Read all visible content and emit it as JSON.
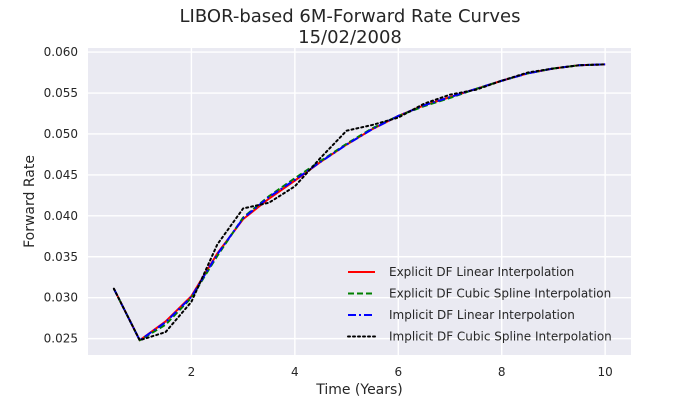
{
  "chart_data": {
    "type": "line",
    "title": "LIBOR-based 6M-Forward Rate Curves",
    "subtitle": "15/02/2008",
    "xlabel": "Time (Years)",
    "ylabel": "Forward Rate",
    "xlim": [
      0.0,
      10.5
    ],
    "ylim": [
      0.023,
      0.0605
    ],
    "xticks": [
      2,
      4,
      6,
      8,
      10
    ],
    "xtick_labels": [
      "2",
      "4",
      "6",
      "8",
      "10"
    ],
    "yticks": [
      0.025,
      0.03,
      0.035,
      0.04,
      0.045,
      0.05,
      0.055,
      0.06
    ],
    "ytick_labels": [
      "0.025",
      "0.030",
      "0.035",
      "0.040",
      "0.045",
      "0.050",
      "0.055",
      "0.060"
    ],
    "grid": true,
    "legend_position": "lower-right",
    "background_color": "#eaeaf2",
    "series": [
      {
        "name": "Explicit DF Linear Interpolation",
        "color": "#ff0000",
        "dash": "solid",
        "x": [
          0.5,
          1.0,
          1.5,
          2.0,
          2.5,
          3.0,
          3.5,
          4.0,
          4.5,
          5.0,
          5.5,
          6.0,
          6.5,
          7.0,
          7.5,
          8.0,
          8.5,
          9.0,
          9.5,
          10.0
        ],
        "y": [
          0.0311,
          0.0248,
          0.0271,
          0.0302,
          0.0354,
          0.0396,
          0.0421,
          0.0443,
          0.0466,
          0.0487,
          0.0506,
          0.0522,
          0.0535,
          0.0545,
          0.0555,
          0.0565,
          0.0574,
          0.058,
          0.0584,
          0.0585
        ]
      },
      {
        "name": "Explicit DF Cubic Spline Interpolation",
        "color": "#008000",
        "dash": "dashed",
        "x": [
          0.5,
          1.0,
          1.5,
          2.0,
          2.5,
          3.0,
          3.5,
          4.0,
          4.5,
          5.0,
          5.5,
          6.0,
          6.5,
          7.0,
          7.5,
          8.0,
          8.5,
          9.0,
          9.5,
          10.0
        ],
        "y": [
          0.0311,
          0.0248,
          0.0267,
          0.03,
          0.0351,
          0.0398,
          0.0424,
          0.0446,
          0.0467,
          0.0488,
          0.0507,
          0.0522,
          0.0534,
          0.0544,
          0.0555,
          0.0565,
          0.0574,
          0.058,
          0.0584,
          0.0585
        ]
      },
      {
        "name": "Implicit DF Linear Interpolation",
        "color": "#0000ff",
        "dash": "dashdot",
        "x": [
          0.5,
          1.0,
          1.5,
          2.0,
          2.5,
          3.0,
          3.5,
          4.0,
          4.5,
          5.0,
          5.5,
          6.0,
          6.5,
          7.0,
          7.5,
          8.0,
          8.5,
          9.0,
          9.5,
          10.0
        ],
        "y": [
          0.0311,
          0.0248,
          0.027,
          0.0301,
          0.0353,
          0.0397,
          0.0423,
          0.0444,
          0.0466,
          0.0487,
          0.0506,
          0.0522,
          0.0535,
          0.0545,
          0.0555,
          0.0565,
          0.0574,
          0.058,
          0.0584,
          0.0585
        ]
      },
      {
        "name": "Implicit DF Cubic Spline Interpolation",
        "color": "#000000",
        "dash": "dotted",
        "x": [
          0.5,
          1.0,
          1.5,
          2.0,
          2.5,
          3.0,
          3.5,
          4.0,
          4.5,
          5.0,
          5.5,
          6.0,
          6.5,
          7.0,
          7.5,
          8.0,
          8.5,
          9.0,
          9.5,
          10.0
        ],
        "y": [
          0.0311,
          0.0248,
          0.0258,
          0.0295,
          0.0365,
          0.0409,
          0.0416,
          0.0436,
          0.0471,
          0.0504,
          0.0511,
          0.052,
          0.0537,
          0.0548,
          0.0554,
          0.0565,
          0.0575,
          0.058,
          0.0584,
          0.0585
        ]
      }
    ]
  }
}
